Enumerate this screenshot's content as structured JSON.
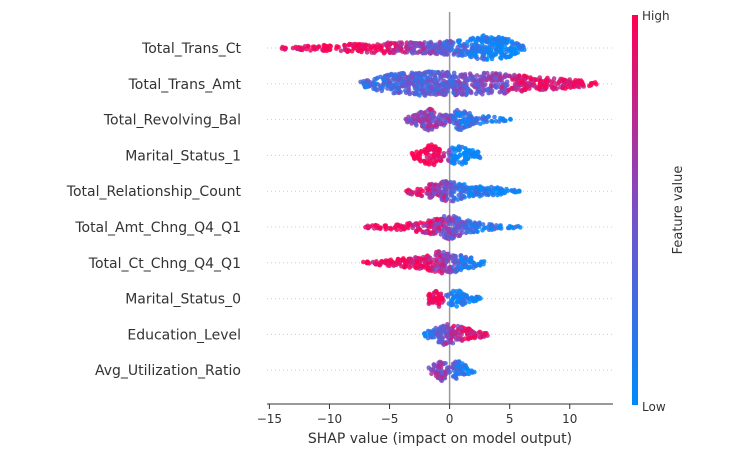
{
  "chart_data": {
    "type": "scatter",
    "subtype": "shap-beeswarm",
    "title": "",
    "xlabel": "SHAP value (impact on model output)",
    "ylabel": "",
    "xlim": [
      -15.2,
      13.6
    ],
    "xticks": [
      -15,
      -10,
      -5,
      0,
      5,
      10
    ],
    "xtick_labels": [
      "−15",
      "−10",
      "−5",
      "0",
      "5",
      "10"
    ],
    "colorbar": {
      "label": "Feature value",
      "high_label": "High",
      "low_label": "Low",
      "high_color": "#ff0052",
      "low_color": "#008bfb"
    },
    "features": [
      {
        "name": "Total_Trans_Ct",
        "range": [
          -14,
          6.3
        ],
        "profile": [
          [
            -14,
            0.1,
            1
          ],
          [
            -10,
            0.25,
            1
          ],
          [
            -6,
            0.4,
            0.9
          ],
          [
            -2,
            0.45,
            0.5
          ],
          [
            1,
            0.6,
            0.25
          ],
          [
            3,
            1.0,
            0.05
          ],
          [
            5,
            0.7,
            0
          ],
          [
            6.3,
            0.1,
            0
          ]
        ]
      },
      {
        "name": "Total_Trans_Amt",
        "range": [
          -7.5,
          12.3
        ],
        "profile": [
          [
            -7.5,
            0.15,
            0.2
          ],
          [
            -5,
            0.75,
            0.3
          ],
          [
            -2,
            0.95,
            0.4
          ],
          [
            1,
            0.9,
            0.4
          ],
          [
            4,
            0.8,
            0.5
          ],
          [
            7,
            0.55,
            0.9
          ],
          [
            10,
            0.35,
            1
          ],
          [
            12.3,
            0.1,
            1
          ]
        ]
      },
      {
        "name": "Total_Revolving_Bal",
        "range": [
          -3.8,
          5.3
        ],
        "profile": [
          [
            -3.8,
            0.1,
            0.4
          ],
          [
            -1.7,
            0.85,
            0.6
          ],
          [
            0,
            0.3,
            0.5
          ],
          [
            0.7,
            0.9,
            0.2
          ],
          [
            2,
            0.4,
            0.1
          ],
          [
            5.3,
            0.05,
            0
          ]
        ]
      },
      {
        "name": "Marital_Status_1",
        "range": [
          -3.2,
          2.8
        ],
        "profile": [
          [
            -3.2,
            0.15,
            1
          ],
          [
            -1.5,
            0.9,
            1
          ],
          [
            -0.4,
            0.2,
            1
          ],
          [
            0.2,
            0.6,
            0
          ],
          [
            1.2,
            0.75,
            0
          ],
          [
            2.8,
            0.1,
            0
          ]
        ]
      },
      {
        "name": "Total_Relationship_Count",
        "range": [
          -3.7,
          6.0
        ],
        "profile": [
          [
            -3.7,
            0.15,
            0.9
          ],
          [
            -2,
            0.45,
            0.8
          ],
          [
            0,
            0.85,
            0.5
          ],
          [
            1.5,
            0.45,
            0.1
          ],
          [
            4,
            0.3,
            0
          ],
          [
            6,
            0.05,
            0
          ]
        ]
      },
      {
        "name": "Total_Amt_Chng_Q4_Q1",
        "range": [
          -7.0,
          6.0
        ],
        "profile": [
          [
            -7,
            0.1,
            1
          ],
          [
            -4,
            0.25,
            1
          ],
          [
            -1.5,
            0.55,
            0.8
          ],
          [
            0,
            0.95,
            0.5
          ],
          [
            2,
            0.4,
            0.25
          ],
          [
            4,
            0.15,
            0.1
          ],
          [
            6,
            0.05,
            0
          ]
        ]
      },
      {
        "name": "Total_Ct_Chng_Q4_Q1",
        "range": [
          -7.4,
          3.2
        ],
        "profile": [
          [
            -7.4,
            0.05,
            1
          ],
          [
            -5,
            0.25,
            1
          ],
          [
            -2,
            0.5,
            0.9
          ],
          [
            -1,
            0.9,
            0.7
          ],
          [
            0.5,
            0.7,
            0.3
          ],
          [
            1.5,
            0.5,
            0.1
          ],
          [
            3.2,
            0.1,
            0
          ]
        ]
      },
      {
        "name": "Marital_Status_0",
        "range": [
          -1.8,
          2.6
        ],
        "profile": [
          [
            -1.8,
            0.4,
            1
          ],
          [
            -0.9,
            0.7,
            1
          ],
          [
            -0.5,
            0.2,
            1
          ],
          [
            0.1,
            0.5,
            0
          ],
          [
            0.6,
            0.7,
            0
          ],
          [
            1.5,
            0.3,
            0
          ],
          [
            2.6,
            0.1,
            0
          ]
        ]
      },
      {
        "name": "Education_Level",
        "range": [
          -2.2,
          3.3
        ],
        "profile": [
          [
            -2.2,
            0.1,
            0.1
          ],
          [
            -0.5,
            0.9,
            0.5
          ],
          [
            0.5,
            0.7,
            0.7
          ],
          [
            1.8,
            0.4,
            0.9
          ],
          [
            3.3,
            0.1,
            1
          ]
        ]
      },
      {
        "name": "Avg_Utilization_Ratio",
        "range": [
          -1.8,
          2.2
        ],
        "profile": [
          [
            -1.8,
            0.2,
            0.5
          ],
          [
            -0.6,
            0.85,
            0.6
          ],
          [
            0,
            0.25,
            0.5
          ],
          [
            0.6,
            0.75,
            0.2
          ],
          [
            2.2,
            0.1,
            0
          ]
        ]
      }
    ]
  }
}
